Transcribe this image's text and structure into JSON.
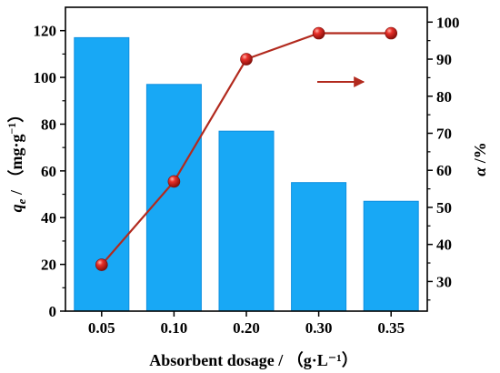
{
  "chart_data": {
    "type": "bar",
    "categories": [
      "0.05",
      "0.10",
      "0.20",
      "0.30",
      "0.35"
    ],
    "series": [
      {
        "axis": "left",
        "type": "bar",
        "values": [
          117,
          97,
          77,
          55,
          47
        ]
      },
      {
        "axis": "right",
        "type": "line",
        "values": [
          34.5,
          57,
          90,
          97,
          97
        ]
      }
    ],
    "xlabel": "Absorbent dosage / （g·L⁻¹）",
    "ylabel_left": {
      "main": "q",
      "sub": "e",
      "rest": " / （mg·g",
      "sup": "−1",
      "close": "）"
    },
    "ylabel_right": {
      "main": "α",
      "rest": " /%"
    },
    "ylim_left": [
      0,
      130
    ],
    "yticks_left": [
      0,
      20,
      40,
      60,
      80,
      100,
      120
    ],
    "ylim_right": [
      22,
      104
    ],
    "yticks_right": [
      30,
      40,
      50,
      60,
      70,
      80,
      90,
      100
    ],
    "annotation": {
      "type": "arrow",
      "direction": "right",
      "refers_to": "right-axis"
    },
    "grid": false,
    "colors": {
      "bar": "#18a8f5",
      "bar_edge": "#0d8fe0",
      "line": "#b22a1e",
      "marker": "#d8241b"
    }
  }
}
